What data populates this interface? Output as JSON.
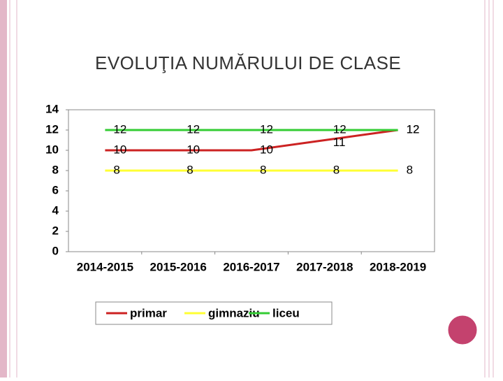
{
  "chart_data": {
    "type": "line",
    "title": "EVOLUŢIA NUMĂRULUI DE CLASE",
    "categories": [
      "2014-2015",
      "2015-2016",
      "2016-2017",
      "2017-2018",
      "2018-2019"
    ],
    "series": [
      {
        "name": "primar",
        "color": "#cc2222",
        "values": [
          10,
          10,
          10,
          11,
          12
        ]
      },
      {
        "name": "gimnaziu",
        "color": "#ffff33",
        "values": [
          8,
          8,
          8,
          8,
          8
        ]
      },
      {
        "name": "liceu",
        "color": "#33cc33",
        "values": [
          12,
          12,
          12,
          12,
          12
        ]
      }
    ],
    "ylim": [
      0,
      14
    ],
    "yticks": [
      0,
      2,
      4,
      6,
      8,
      10,
      12,
      14
    ],
    "grid": false,
    "legend": "bottom",
    "data_labels": true
  }
}
